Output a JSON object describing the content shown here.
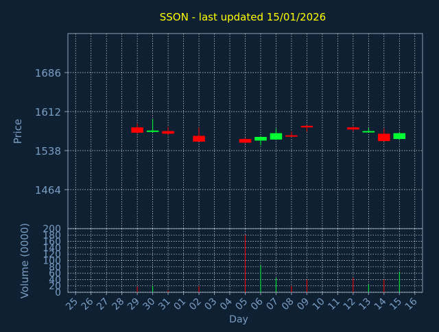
{
  "title": "SSON - last updated 15/01/2026",
  "colors": {
    "background": "#0f2033",
    "title": "#ffff00",
    "axis_text": "#7a9ec4",
    "grid": "#ffffff",
    "up": "#00ff33",
    "down": "#ff0000"
  },
  "chart_data": [
    {
      "type": "candlestick",
      "ylabel": "Price",
      "ylim": [
        1390,
        1760
      ],
      "yticks": [
        1464,
        1538,
        1612,
        1686
      ],
      "grid": true,
      "x": [
        "25",
        "26",
        "27",
        "28",
        "29",
        "30",
        "31",
        "01",
        "02",
        "03",
        "04",
        "05",
        "06",
        "07",
        "08",
        "09",
        "10",
        "11",
        "12",
        "13",
        "14",
        "15",
        "16"
      ],
      "candles": [
        {
          "x": "29",
          "open": 1582,
          "close": 1572,
          "high": 1589,
          "low": 1570
        },
        {
          "x": "30",
          "open": 1574,
          "close": 1576,
          "high": 1598,
          "low": 1572
        },
        {
          "x": "31",
          "open": 1575,
          "close": 1570,
          "high": 1583,
          "low": 1568
        },
        {
          "x": "02",
          "open": 1566,
          "close": 1555,
          "high": 1582,
          "low": 1555
        },
        {
          "x": "05",
          "open": 1560,
          "close": 1553,
          "high": 1562,
          "low": 1552
        },
        {
          "x": "06",
          "open": 1557,
          "close": 1564,
          "high": 1565,
          "low": 1548
        },
        {
          "x": "07",
          "open": 1559,
          "close": 1571,
          "high": 1580,
          "low": 1558
        },
        {
          "x": "08",
          "open": 1567,
          "close": 1566,
          "high": 1574,
          "low": 1564
        },
        {
          "x": "09",
          "open": 1585,
          "close": 1582,
          "high": 1586,
          "low": 1574
        },
        {
          "x": "12",
          "open": 1582,
          "close": 1578,
          "high": 1584,
          "low": 1574
        },
        {
          "x": "13",
          "open": 1573,
          "close": 1575,
          "high": 1581,
          "low": 1573
        },
        {
          "x": "14",
          "open": 1570,
          "close": 1556,
          "high": 1580,
          "low": 1556
        },
        {
          "x": "15",
          "open": 1560,
          "close": 1571,
          "high": 1572,
          "low": 1558
        }
      ]
    },
    {
      "type": "bar",
      "xlabel": "Day",
      "ylabel": "Volume (0000)",
      "ylim": [
        0,
        200
      ],
      "yticks": [
        0,
        20,
        40,
        60,
        80,
        100,
        120,
        140,
        160,
        180,
        200
      ],
      "grid": true,
      "x": [
        "25",
        "26",
        "27",
        "28",
        "29",
        "30",
        "31",
        "01",
        "02",
        "03",
        "04",
        "05",
        "06",
        "07",
        "08",
        "09",
        "10",
        "11",
        "12",
        "13",
        "14",
        "15",
        "16"
      ],
      "bars": [
        {
          "x": "29",
          "value": 18,
          "direction": "down"
        },
        {
          "x": "30",
          "value": 20,
          "direction": "up"
        },
        {
          "x": "31",
          "value": 6,
          "direction": "down"
        },
        {
          "x": "02",
          "value": 20,
          "direction": "down"
        },
        {
          "x": "05",
          "value": 180,
          "direction": "down"
        },
        {
          "x": "06",
          "value": 85,
          "direction": "up"
        },
        {
          "x": "07",
          "value": 45,
          "direction": "up"
        },
        {
          "x": "08",
          "value": 20,
          "direction": "down"
        },
        {
          "x": "09",
          "value": 40,
          "direction": "down"
        },
        {
          "x": "12",
          "value": 45,
          "direction": "down"
        },
        {
          "x": "13",
          "value": 25,
          "direction": "up"
        },
        {
          "x": "14",
          "value": 40,
          "direction": "down"
        },
        {
          "x": "15",
          "value": 65,
          "direction": "up"
        }
      ]
    }
  ]
}
